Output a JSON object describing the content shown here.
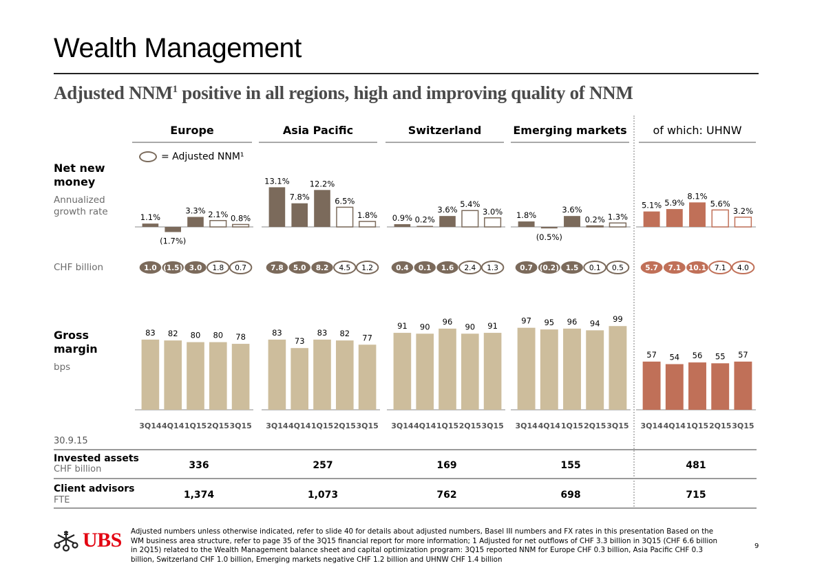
{
  "page": {
    "title": "Wealth Management",
    "subtitle_part1": "Adjusted NNM",
    "subtitle_sup": "1",
    "subtitle_part2": " positive in all regions, high and improving quality of NNM",
    "legend_label": "= Adjusted NNM¹",
    "page_number": "9",
    "logo_text": "UBS"
  },
  "row_labels": {
    "nnm_title": "Net new money",
    "nnm_sub": "Annualized growth rate",
    "chf_billion": "CHF billion",
    "gm_title": "Gross margin",
    "gm_sub": "bps"
  },
  "colors": {
    "nnm_bar": "#7b6a5b",
    "gm_bar": "#cdbd9c",
    "uhnw_bar": "#c07058",
    "baseline": "#b0b0b0"
  },
  "chart_data": {
    "type": "bar",
    "categories": [
      "3Q14",
      "4Q14",
      "1Q15",
      "2Q15",
      "3Q15"
    ],
    "adjusted_flags": [
      false,
      false,
      false,
      true,
      true
    ],
    "regions": [
      {
        "name": "Europe",
        "nnm_growth_pct": [
          1.1,
          -1.7,
          3.3,
          2.1,
          0.8
        ],
        "nnm_growth_labels": [
          "1.1%",
          "(1.7%)",
          "3.3%",
          "2.1%",
          "0.8%"
        ],
        "nnm_chf_bn": [
          "1.0",
          "(1.5)",
          "3.0",
          "1.8",
          "0.7"
        ],
        "gross_margin_bps": [
          83,
          82,
          80,
          80,
          78
        ]
      },
      {
        "name": "Asia Pacific",
        "nnm_growth_pct": [
          13.1,
          7.8,
          12.2,
          6.5,
          1.8
        ],
        "nnm_growth_labels": [
          "13.1%",
          "7.8%",
          "12.2%",
          "6.5%",
          "1.8%"
        ],
        "nnm_chf_bn": [
          "7.8",
          "5.0",
          "8.2",
          "4.5",
          "1.2"
        ],
        "gross_margin_bps": [
          83,
          73,
          83,
          82,
          77
        ]
      },
      {
        "name": "Switzerland",
        "nnm_growth_pct": [
          0.9,
          0.2,
          3.6,
          5.4,
          3.0
        ],
        "nnm_growth_labels": [
          "0.9%",
          "0.2%",
          "3.6%",
          "5.4%",
          "3.0%"
        ],
        "nnm_chf_bn": [
          "0.4",
          "0.1",
          "1.6",
          "2.4",
          "1.3"
        ],
        "gross_margin_bps": [
          91,
          90,
          96,
          90,
          91
        ]
      },
      {
        "name": "Emerging markets",
        "nnm_growth_pct": [
          1.8,
          -0.5,
          3.6,
          0.2,
          1.3
        ],
        "nnm_growth_labels": [
          "1.8%",
          "(0.5%)",
          "3.6%",
          "0.2%",
          "1.3%"
        ],
        "nnm_chf_bn": [
          "0.7",
          "(0.2)",
          "1.5",
          "0.1",
          "0.5"
        ],
        "gross_margin_bps": [
          97,
          95,
          96,
          94,
          99
        ]
      },
      {
        "name": "of which: UHNW",
        "nnm_growth_pct": [
          5.1,
          5.9,
          8.1,
          5.6,
          3.2
        ],
        "nnm_growth_labels": [
          "5.1%",
          "5.9%",
          "8.1%",
          "5.6%",
          "3.2%"
        ],
        "nnm_chf_bn": [
          "5.7",
          "7.1",
          "10.1",
          "7.1",
          "4.0"
        ],
        "gross_margin_bps": [
          57,
          54,
          56,
          55,
          57
        ]
      }
    ]
  },
  "table": {
    "as_of": "30.9.15",
    "rows": [
      {
        "label": "Invested assets",
        "sub": "CHF billion",
        "values": [
          "336",
          "257",
          "169",
          "155",
          "481"
        ]
      },
      {
        "label": "Client advisors",
        "sub": "FTE",
        "values": [
          "1,374",
          "1,073",
          "762",
          "698",
          "715"
        ]
      }
    ]
  },
  "footer": {
    "text": "Adjusted numbers unless otherwise indicated, refer to slide 40 for details about adjusted numbers, Basel III numbers and FX rates in this presentation Based on the WM business area structure, refer to page 35 of the 3Q15 financial report for more information; 1 Adjusted for net outflows of CHF 3.3 billion in 3Q15 (CHF 6.6 billion in 2Q15) related to the Wealth Management balance sheet and capital optimization program: 3Q15 reported NNM for Europe CHF 0.3 billion, Asia Pacific CHF 0.3 billion, Switzerland CHF 1.0 billion, Emerging markets negative CHF 1.2 billion and UHNW CHF 1.4 billion"
  }
}
